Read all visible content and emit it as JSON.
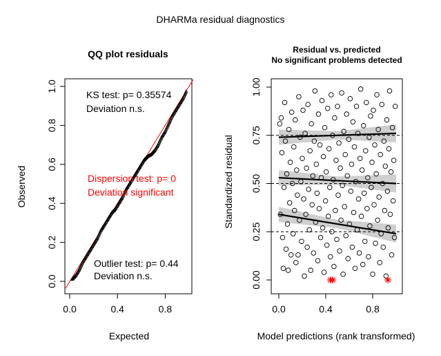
{
  "figure_title": "DHARMa residual diagnostics",
  "chart_data": [
    {
      "type": "scatter",
      "title": "QQ plot residuals",
      "xlabel": "Expected",
      "ylabel": "Observed",
      "xlim": [
        0,
        1
      ],
      "ylim": [
        0,
        1
      ],
      "x_ticks": [
        "0.0",
        "0.4",
        "0.8"
      ],
      "y_ticks": [
        "0.0",
        "0.2",
        "0.4",
        "0.6",
        "0.8",
        "1.0"
      ],
      "reference_line": {
        "from": [
          0,
          0
        ],
        "to": [
          1,
          1
        ],
        "color": "#ff0000"
      },
      "quantiles": [
        [
          0.02,
          0.01
        ],
        [
          0.05,
          0.03
        ],
        [
          0.08,
          0.06
        ],
        [
          0.11,
          0.1
        ],
        [
          0.14,
          0.13
        ],
        [
          0.17,
          0.16
        ],
        [
          0.2,
          0.19
        ],
        [
          0.23,
          0.22
        ],
        [
          0.26,
          0.26
        ],
        [
          0.29,
          0.29
        ],
        [
          0.32,
          0.32
        ],
        [
          0.35,
          0.35
        ],
        [
          0.38,
          0.37
        ],
        [
          0.41,
          0.4
        ],
        [
          0.44,
          0.43
        ],
        [
          0.47,
          0.47
        ],
        [
          0.5,
          0.5
        ],
        [
          0.53,
          0.53
        ],
        [
          0.56,
          0.56
        ],
        [
          0.59,
          0.59
        ],
        [
          0.62,
          0.62
        ],
        [
          0.65,
          0.64
        ],
        [
          0.68,
          0.65
        ],
        [
          0.71,
          0.67
        ],
        [
          0.74,
          0.7
        ],
        [
          0.77,
          0.74
        ],
        [
          0.8,
          0.77
        ],
        [
          0.83,
          0.81
        ],
        [
          0.86,
          0.85
        ],
        [
          0.89,
          0.88
        ],
        [
          0.92,
          0.91
        ],
        [
          0.95,
          0.94
        ],
        [
          0.98,
          0.98
        ]
      ],
      "annotations": {
        "ks_test": "KS test: p= 0.35574",
        "ks_deviation": "Deviation  n.s.",
        "dispersion_test": "Dispersion test: p= 0",
        "dispersion_deviation": "Deviation  significant",
        "outlier_test": "Outlier test: p= 0.44",
        "outlier_deviation": "Deviation  n.s."
      },
      "colors": {
        "points": "#000000",
        "line": "#ff0000",
        "significant": "#ff0000"
      }
    },
    {
      "type": "scatter",
      "title": "Residual vs. predicted",
      "subtitle": "No significant problems detected",
      "xlabel": "Model predictions (rank transformed)",
      "ylabel": "Standardized residual",
      "xlim": [
        0,
        1
      ],
      "ylim": [
        0,
        1
      ],
      "x_ticks": [
        "0.0",
        "0.4",
        "0.8"
      ],
      "y_ticks": [
        "0.00",
        "0.25",
        "0.50",
        "0.75",
        "1.00"
      ],
      "reference_lines": [
        0.25,
        0.5,
        0.75
      ],
      "quantile_fits": [
        {
          "quantile": 0.25,
          "start": 0.34,
          "end": 0.24
        },
        {
          "quantile": 0.5,
          "start": 0.53,
          "end": 0.5
        },
        {
          "quantile": 0.75,
          "start": 0.74,
          "end": 0.76
        }
      ],
      "points": [
        [
          0.008,
          0.81
        ],
        [
          0.013,
          0.34
        ],
        [
          0.02,
          0.84
        ],
        [
          0.026,
          0.66
        ],
        [
          0.032,
          0.22
        ],
        [
          0.038,
          0.06
        ],
        [
          0.044,
          0.48
        ],
        [
          0.05,
          0.92
        ],
        [
          0.056,
          0.72
        ],
        [
          0.062,
          0.16
        ],
        [
          0.068,
          0.55
        ],
        [
          0.074,
          0.29
        ],
        [
          0.08,
          0.05
        ],
        [
          0.086,
          0.78
        ],
        [
          0.092,
          0.4
        ],
        [
          0.098,
          0.61
        ],
        [
          0.104,
          0.13
        ],
        [
          0.11,
          0.87
        ],
        [
          0.116,
          0.5
        ],
        [
          0.122,
          0.24
        ],
        [
          0.128,
          0.69
        ],
        [
          0.134,
          0.36
        ],
        [
          0.14,
          0.83
        ],
        [
          0.146,
          0.09
        ],
        [
          0.152,
          0.57
        ],
        [
          0.158,
          0.44
        ],
        [
          0.164,
          0.13
        ],
        [
          0.17,
          0.95
        ],
        [
          0.176,
          0.31
        ],
        [
          0.182,
          0.74
        ],
        [
          0.188,
          0.51
        ],
        [
          0.194,
          0.2
        ],
        [
          0.2,
          0.63
        ],
        [
          0.206,
          0.88
        ],
        [
          0.212,
          0.42
        ],
        [
          0.218,
          0.02
        ],
        [
          0.224,
          0.76
        ],
        [
          0.23,
          0.34
        ],
        [
          0.236,
          0.58
        ],
        [
          0.242,
          0.17
        ],
        [
          0.248,
          0.91
        ],
        [
          0.254,
          0.47
        ],
        [
          0.26,
          0.26
        ],
        [
          0.266,
          0.67
        ],
        [
          0.272,
          0.05
        ],
        [
          0.278,
          0.81
        ],
        [
          0.284,
          0.39
        ],
        [
          0.29,
          0.54
        ],
        [
          0.296,
          0.14
        ],
        [
          0.302,
          0.72
        ],
        [
          0.308,
          0.98
        ],
        [
          0.314,
          0.3
        ],
        [
          0.32,
          0.6
        ],
        [
          0.326,
          0.45
        ],
        [
          0.332,
          0.1
        ],
        [
          0.338,
          0.86
        ],
        [
          0.344,
          0.37
        ],
        [
          0.35,
          0.7
        ],
        [
          0.356,
          0.22
        ],
        [
          0.362,
          0.53
        ],
        [
          0.368,
          0.93
        ],
        [
          0.374,
          0.27
        ],
        [
          0.38,
          0.64
        ],
        [
          0.386,
          0.04
        ],
        [
          0.392,
          0.79
        ],
        [
          0.398,
          0.41
        ],
        [
          0.404,
          0.56
        ],
        [
          0.41,
          0.18
        ],
        [
          0.416,
          0.89
        ],
        [
          0.422,
          0.33
        ],
        [
          0.428,
          0.68
        ],
        [
          0.434,
          0.48
        ],
        [
          0.44,
          0.12
        ],
        [
          0.446,
          0.96
        ],
        [
          0.452,
          0.25
        ],
        [
          0.458,
          0.75
        ],
        [
          0.464,
          0.52
        ],
        [
          0.47,
          0.07
        ],
        [
          0.476,
          0.84
        ],
        [
          0.482,
          0.36
        ],
        [
          0.488,
          0.62
        ],
        [
          0.494,
          0.21
        ],
        [
          0.5,
          0.9
        ],
        [
          0.506,
          0.44
        ],
        [
          0.512,
          0.71
        ],
        [
          0.518,
          0.15
        ],
        [
          0.524,
          0.58
        ],
        [
          0.53,
          0.31
        ],
        [
          0.536,
          0.97
        ],
        [
          0.542,
          0.49
        ],
        [
          0.548,
          0.03
        ],
        [
          0.554,
          0.77
        ],
        [
          0.56,
          0.38
        ],
        [
          0.566,
          0.65
        ],
        [
          0.572,
          0.23
        ],
        [
          0.578,
          0.86
        ],
        [
          0.584,
          0.54
        ],
        [
          0.59,
          0.11
        ],
        [
          0.596,
          0.73
        ],
        [
          0.602,
          0.29
        ],
        [
          0.608,
          0.94
        ],
        [
          0.614,
          0.46
        ],
        [
          0.62,
          0.6
        ],
        [
          0.626,
          0.17
        ],
        [
          0.632,
          0.82
        ],
        [
          0.638,
          0.35
        ],
        [
          0.644,
          0.69
        ],
        [
          0.65,
          0.06
        ],
        [
          0.656,
          0.51
        ],
        [
          0.662,
          0.9
        ],
        [
          0.668,
          0.26
        ],
        [
          0.674,
          0.76
        ],
        [
          0.68,
          0.42
        ],
        [
          0.686,
          0.14
        ],
        [
          0.692,
          0.63
        ],
        [
          0.698,
          0.99
        ],
        [
          0.704,
          0.33
        ],
        [
          0.71,
          0.57
        ],
        [
          0.716,
          0.08
        ],
        [
          0.722,
          0.8
        ],
        [
          0.728,
          0.45
        ],
        [
          0.734,
          0.2
        ],
        [
          0.74,
          0.67
        ],
        [
          0.746,
          0.92
        ],
        [
          0.752,
          0.37
        ],
        [
          0.758,
          0.53
        ],
        [
          0.764,
          0.12
        ],
        [
          0.77,
          0.74
        ],
        [
          0.776,
          0.28
        ],
        [
          0.782,
          0.85
        ],
        [
          0.788,
          0.48
        ],
        [
          0.794,
          0.61
        ],
        [
          0.8,
          0.03
        ],
        [
          0.806,
          0.88
        ],
        [
          0.812,
          0.39
        ],
        [
          0.818,
          0.7
        ],
        [
          0.824,
          0.19
        ],
        [
          0.83,
          0.55
        ],
        [
          0.836,
          0.96
        ],
        [
          0.842,
          0.31
        ],
        [
          0.848,
          0.78
        ],
        [
          0.854,
          0.43
        ],
        [
          0.86,
          0.09
        ],
        [
          0.866,
          0.65
        ],
        [
          0.872,
          0.24
        ],
        [
          0.878,
          0.91
        ],
        [
          0.884,
          0.5
        ],
        [
          0.89,
          0.17
        ],
        [
          0.896,
          0.72
        ],
        [
          0.902,
          0.36
        ],
        [
          0.908,
          0.59
        ],
        [
          0.914,
          0.02
        ],
        [
          0.92,
          0.83
        ],
        [
          0.926,
          0.46
        ],
        [
          0.932,
          0.27
        ],
        [
          0.938,
          0.68
        ],
        [
          0.944,
          0.98
        ],
        [
          0.95,
          0.34
        ],
        [
          0.956,
          0.56
        ],
        [
          0.962,
          0.13
        ],
        [
          0.968,
          0.79
        ],
        [
          0.974,
          0.41
        ],
        [
          0.98,
          0.62
        ],
        [
          0.986,
          0.22
        ],
        [
          0.992,
          0.9
        ]
      ],
      "outliers": [
        [
          0.44,
          0.0
        ],
        [
          0.46,
          0.0
        ],
        [
          0.93,
          0.0
        ]
      ],
      "colors": {
        "points": "#000000",
        "outliers": "#ff0000",
        "band": "#bfbfbf"
      }
    }
  ]
}
